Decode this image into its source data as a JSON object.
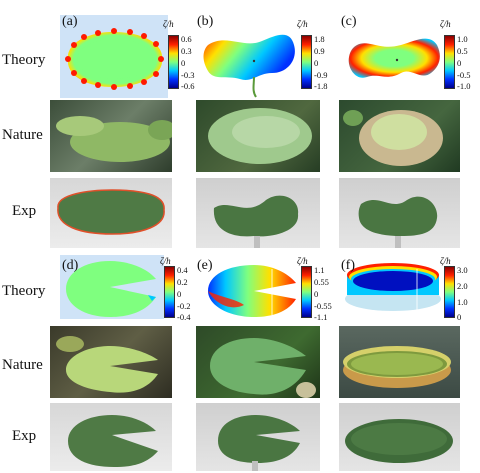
{
  "row_labels": {
    "theory": "Theory",
    "nature": "Nature",
    "exp": "Exp"
  },
  "panels": [
    {
      "letter": "(a)",
      "colorbar_title": "ζ/h",
      "ticks": [
        "0.6",
        "0.3",
        "0",
        "-0.3",
        "-0.6"
      ]
    },
    {
      "letter": "(b)",
      "colorbar_title": "ζ/h",
      "ticks": [
        "1.8",
        "0.9",
        "0",
        "-0.9",
        "-1.8"
      ]
    },
    {
      "letter": "(c)",
      "colorbar_title": "ζ/h",
      "ticks": [
        "1.0",
        "0.5",
        "0",
        "-0.5",
        "-1.0"
      ]
    },
    {
      "letter": "(d)",
      "colorbar_title": "ζ/h",
      "ticks": [
        "0.4",
        "0.2",
        "0",
        "-0.2",
        "-0.4"
      ]
    },
    {
      "letter": "(e)",
      "colorbar_title": "ζ/h",
      "ticks": [
        "1.1",
        "0.55",
        "0",
        "-0.55",
        "-1.1"
      ]
    },
    {
      "letter": "(f)",
      "colorbar_title": "ζ/h",
      "ticks": [
        "3.0",
        "2.0",
        "1.0",
        "0"
      ]
    }
  ],
  "colors": {
    "jet_top": "#8b0000",
    "jet_red": "#ff2000",
    "jet_yellow": "#ffe000",
    "jet_green": "#7fff7f",
    "jet_cyan": "#00c8ff",
    "jet_blue": "#0030ff",
    "jet_bottom": "#00008b",
    "theory_bg": "#cfe3f7",
    "leaf_green": "#4f7a45"
  }
}
